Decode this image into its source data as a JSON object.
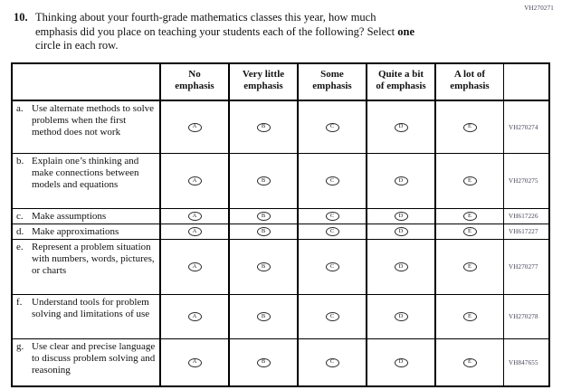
{
  "page_code": "VH270271",
  "question": {
    "number": "10.",
    "lines": [
      {
        "text": "Thinking about your fourth-grade mathematics classes this year, how much"
      },
      {
        "text": "emphasis did you place on teaching your students each of the following? Select ",
        "bold": "one"
      },
      {
        "text": "circle in each row."
      }
    ]
  },
  "table": {
    "column_headers": [
      {
        "line1": "No",
        "line2": "emphasis"
      },
      {
        "line1": "Very little",
        "line2": "emphasis"
      },
      {
        "line1": "Some",
        "line2": "emphasis"
      },
      {
        "line1": "Quite a bit",
        "line2": "of emphasis"
      },
      {
        "line1": "A lot of",
        "line2": "emphasis"
      }
    ],
    "oval_letters": [
      "A",
      "B",
      "C",
      "D",
      "E"
    ],
    "rows": [
      {
        "letter": "a.",
        "text": "Use alternate methods to solve problems when the first method does not work",
        "code": "VH270274"
      },
      {
        "letter": "b.",
        "text": "Explain one’s thinking and make connections between models and equations",
        "code": "VH270275"
      },
      {
        "letter": "c.",
        "text": "Make assumptions",
        "code": "VH617226"
      },
      {
        "letter": "d.",
        "text": "Make approximations",
        "code": "VH617227"
      },
      {
        "letter": "e.",
        "text": "Represent a problem situation with numbers, words, pictures, or charts",
        "code": "VH270277"
      },
      {
        "letter": "f.",
        "text": "Understand tools for problem solving and limitations of use",
        "code": "VH270278"
      },
      {
        "letter": "g.",
        "text": "Use clear and precise language to discuss problem solving and reasoning",
        "code": "VH847655"
      }
    ],
    "colors": {
      "border": "#000000",
      "text": "#111111",
      "code_text": "#3e3e55"
    }
  }
}
